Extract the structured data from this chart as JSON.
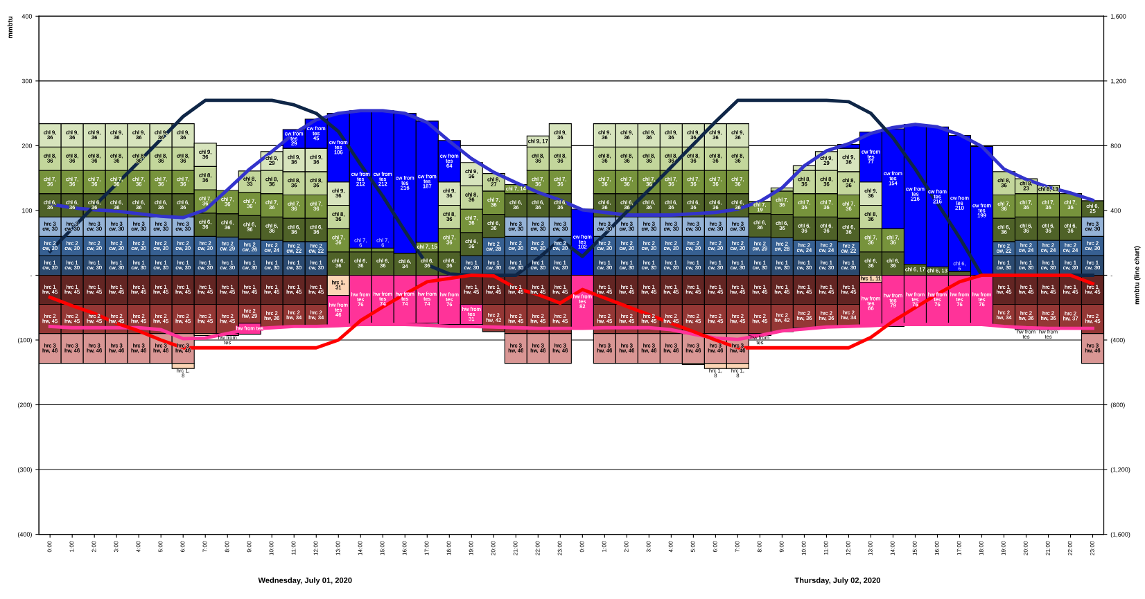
{
  "chart_data": {
    "type": "bar",
    "stacked": true,
    "ylabel": "mmbtu",
    "y2label": "mmbtu (line chart)",
    "categories": [
      "0:00",
      "1:00",
      "2:00",
      "3:00",
      "4:00",
      "5:00",
      "6:00",
      "7:00",
      "8:00",
      "9:00",
      "10:00",
      "11:00",
      "12:00",
      "13:00",
      "14:00",
      "15:00",
      "16:00",
      "17:00",
      "18:00",
      "19:00",
      "20:00",
      "21:00",
      "22:00",
      "23:00",
      "0:00",
      "1:00",
      "2:00",
      "3:00",
      "4:00",
      "5:00",
      "6:00",
      "7:00",
      "8:00",
      "9:00",
      "10:00",
      "11:00",
      "12:00",
      "13:00",
      "14:00",
      "15:00",
      "16:00",
      "17:00",
      "18:00",
      "19:00",
      "20:00",
      "21:00",
      "22:00",
      "23:00"
    ],
    "annotations": [
      "Wednesday, July 01, 2020",
      "Thursday, July 02, 2020"
    ],
    "ylim": [
      -400,
      400
    ],
    "yticks": [
      {
        "value": -400,
        "label": "(400)"
      },
      {
        "value": -300,
        "label": "(300)"
      },
      {
        "value": -200,
        "label": "(200)"
      },
      {
        "value": -100,
        "label": "(100)"
      },
      {
        "value": 0,
        "label": "-"
      },
      100,
      200,
      300,
      400
    ],
    "y2lim": [
      -1600,
      1600
    ],
    "y2ticks": [
      {
        "value": -1600,
        "label": "(1,600)"
      },
      {
        "value": -1200,
        "label": "(1,200)"
      },
      {
        "value": -800,
        "label": "(800)"
      },
      {
        "value": -400,
        "label": "(400)"
      },
      {
        "value": 0,
        "label": "-"
      },
      400,
      800,
      {
        "value": 1200,
        "label": "1,200"
      },
      {
        "value": 1600,
        "label": "1,600"
      }
    ],
    "grid": "y",
    "series": [
      {
        "color": "#2b4a70",
        "values": [
          30,
          30,
          30,
          30,
          30,
          30,
          30,
          30,
          30,
          30,
          30,
          30,
          30,
          null,
          null,
          null,
          null,
          null,
          null,
          30,
          30,
          30,
          30,
          30,
          null,
          30,
          30,
          30,
          30,
          30,
          30,
          30,
          30,
          30,
          30,
          30,
          30,
          null,
          null,
          null,
          null,
          null,
          null,
          30,
          30,
          30,
          30,
          30
        ],
        "value_labels": [
          "hrc 1 cw, 30",
          "hrc 1 cw, 30",
          "hrc 1 cw, 30",
          "hrc 1 cw, 30",
          "hrc 1 cw, 30",
          "hrc 1 cw, 30",
          "hrc 1 cw, 30",
          "hrc 1 cw, 30",
          "hrc 1 cw, 30",
          "hrc 1 cw, 30",
          "hrc 1 cw, 30",
          "hrc 1 cw, 30",
          "hrc 1 cw, 30",
          null,
          null,
          null,
          null,
          null,
          null,
          "hrc 1 cw, 30",
          "hrc 1 cw, 30",
          "hrc 1 cw, 30",
          "hrc 1 cw, 30",
          "hrc 1 cw, 30",
          null,
          "hrc 1 cw, 30",
          "hrc 1 cw, 30",
          "hrc 1 cw, 30",
          "hrc 1 cw, 30",
          "hrc 1 cw, 30",
          "hrc 1 cw, 30",
          "hrc 1 cw, 30",
          "hrc 1 cw, 30",
          "hrc 1 cw, 30",
          "hrc 1 cw, 30",
          "hrc 1 cw, 30",
          "hrc 1 cw, 30",
          null,
          null,
          null,
          null,
          null,
          null,
          "hrc 1 cw, 30",
          "hrc 1 cw, 30",
          "hrc 1 cw, 30",
          "hrc 1 cw, 30",
          "hrc 1 cw, 30"
        ]
      },
      {
        "color": "#376092",
        "values": [
          30,
          30,
          30,
          30,
          30,
          30,
          30,
          30,
          29,
          26,
          24,
          22,
          22,
          null,
          null,
          null,
          null,
          null,
          null,
          null,
          28,
          30,
          30,
          30,
          null,
          30,
          30,
          30,
          30,
          30,
          30,
          30,
          29,
          28,
          24,
          24,
          22,
          null,
          null,
          null,
          null,
          null,
          null,
          22,
          24,
          24,
          24,
          30
        ],
        "value_labels": [
          "hrc 2 cw, 30",
          "hrc 2 cw, 30",
          "hrc 2 cw, 30",
          "hrc 2 cw, 30",
          "hrc 2 cw, 30",
          "hrc 2 cw, 30",
          "hrc 2 cw, 30",
          "hrc 2 cw, 30",
          "hrc 2 cw, 29",
          "hrc 2 cw, 26",
          "hrc 2 cw, 24",
          "hrc 2 cw, 22",
          "hrc 2 cw, 22",
          null,
          null,
          null,
          null,
          null,
          null,
          null,
          "hrc 2 cw, 28",
          "hrc 2 cw, 30",
          "hrc 2 cw, 30",
          "hrc 2 cw, 30",
          null,
          "hrc 2 cw, 30",
          "hrc 2 cw, 30",
          "hrc 2 cw, 30",
          "hrc 2 cw, 30",
          "hrc 2 cw, 30",
          "hrc 2 cw, 30",
          "hrc 2 cw, 30",
          "hrc 2 cw, 29",
          "hrc 2 cw, 28",
          "hrc 2 cw, 24",
          "hrc 2 cw, 24",
          "hrc 2 cw, 22",
          null,
          null,
          null,
          null,
          null,
          null,
          "hrc 2 cw, 22",
          "hrc 2 cw, 24",
          "hrc 2 cw, 24",
          "hrc 2 cw, 24",
          "hrc 2 cw, 30"
        ]
      },
      {
        "color": "#95b3d7",
        "values": [
          30,
          30,
          30,
          30,
          30,
          30,
          30,
          null,
          null,
          null,
          null,
          null,
          null,
          null,
          null,
          null,
          null,
          null,
          null,
          null,
          null,
          30,
          30,
          30,
          null,
          30,
          30,
          30,
          30,
          30,
          30,
          30,
          null,
          null,
          null,
          null,
          null,
          null,
          null,
          null,
          null,
          null,
          null,
          null,
          null,
          null,
          null,
          30
        ],
        "value_labels": [
          "hrc 3 cw, 30",
          "hrc 3 cw, 30",
          "hrc 3 cw, 30",
          "hrc 3 cw, 30",
          "hrc 3 cw, 30",
          "hrc 3 cw, 30",
          "hrc 3 cw, 30",
          null,
          null,
          null,
          null,
          null,
          null,
          null,
          null,
          null,
          null,
          null,
          null,
          null,
          null,
          "hrc 3 cw, 30",
          "hrc 3 cw, 30",
          "hrc 3 cw, 30",
          null,
          "hrc 3 cw, 30",
          "hrc 3 cw, 30",
          "hrc 3 cw, 30",
          "hrc 3 cw, 30",
          "hrc 3 cw, 30",
          "hrc 3 cw, 30",
          "hrc 3 cw, 30",
          null,
          null,
          null,
          null,
          null,
          null,
          null,
          null,
          null,
          null,
          null,
          null,
          null,
          null,
          null,
          "hrc 3 cw, 30"
        ]
      },
      {
        "color": "#4f6228",
        "values": [
          36,
          36,
          36,
          36,
          36,
          36,
          36,
          36,
          36,
          36,
          36,
          36,
          36,
          36,
          36,
          36,
          34,
          36,
          36,
          36,
          36,
          36,
          36,
          36,
          null,
          36,
          36,
          36,
          36,
          36,
          36,
          36,
          36,
          36,
          36,
          36,
          36,
          36,
          36,
          17,
          13,
          6,
          null,
          36,
          36,
          36,
          36,
          25
        ],
        "value_labels": [
          "chl 6, 36",
          "chl 6, 36",
          "chl 6, 36",
          "chl 6, 36",
          "chl 6, 36",
          "chl 6, 36",
          "chl 6, 36",
          "chl 6, 36",
          "chl 6, 36",
          "chl 6, 36",
          "chl 6, 36",
          "chl 6, 36",
          "chl 6, 36",
          "chl 6, 36",
          "chl 6, 36",
          "chl 6, 36",
          "chl 6, 34",
          "chl 6, 36",
          "chl 6, 36",
          "chl 6, 36",
          "chl 6, 36",
          "chl 6, 36",
          "chl 6, 36",
          "chl 6, 36",
          null,
          "chl 6, 36",
          "chl 6, 36",
          "chl 6, 36",
          "chl 6, 36",
          "chl 6, 36",
          "chl 6, 36",
          "chl 6, 36",
          "chl 6, 36",
          "chl 6, 36",
          "chl 6, 36",
          "chl 6, 36",
          "chl 6, 36",
          "chl 6, 36",
          "chl 6, 36",
          "chl 6, 17",
          "chl 6, 13",
          "chl 6, 6",
          null,
          "chl 6, 36",
          "chl 6, 36",
          "chl 6, 36",
          "chl 6, 36",
          "chl 6, 25"
        ]
      },
      {
        "color": "#77933c",
        "values": [
          36,
          36,
          36,
          36,
          36,
          36,
          36,
          36,
          36,
          36,
          36,
          36,
          36,
          36,
          6,
          6,
          null,
          15,
          36,
          36,
          36,
          14,
          36,
          36,
          null,
          36,
          36,
          36,
          36,
          36,
          36,
          36,
          19,
          36,
          36,
          36,
          36,
          36,
          36,
          null,
          null,
          null,
          null,
          36,
          36,
          36,
          36,
          null
        ],
        "value_labels": [
          "chl 7, 36",
          "chl 7, 36",
          "chl 7, 36",
          "chl 7, 36",
          "chl 7, 36",
          "chl 7, 36",
          "chl 7, 36",
          "chl 7, 36",
          "chl 7, 36",
          "chl 7, 36",
          "chl 7, 36",
          "chl 7, 36",
          "chl 7, 36",
          "chl 7, 36",
          "chl 7, 6",
          "chl 7, 6",
          null,
          "chl 7, 15",
          "chl 7, 36",
          "chl 7, 36",
          "chl 7, 36",
          "chl 7, 14",
          "chl 7, 36",
          "chl 7, 36",
          null,
          "chl 7, 36",
          "chl 7, 36",
          "chl 7, 36",
          "chl 7, 36",
          "chl 7, 36",
          "chl 7, 36",
          "chl 7, 36",
          "chl 7, 19",
          "chl 7, 36",
          "chl 7, 36",
          "chl 7, 36",
          "chl 7, 36",
          "chl 7, 36",
          "chl 7, 36",
          null,
          null,
          null,
          null,
          "chl 7, 36",
          "chl 7, 36",
          "chl 7, 36",
          "chl 7, 36",
          null
        ]
      },
      {
        "color": "#c3d69b",
        "values": [
          36,
          36,
          36,
          36,
          36,
          36,
          36,
          36,
          null,
          33,
          36,
          36,
          36,
          36,
          null,
          null,
          null,
          null,
          36,
          36,
          27,
          null,
          36,
          36,
          null,
          36,
          36,
          36,
          36,
          36,
          36,
          36,
          null,
          5,
          36,
          36,
          36,
          36,
          null,
          null,
          null,
          null,
          null,
          36,
          23,
          13,
          null,
          null
        ],
        "value_labels": [
          "chl 8, 36",
          "chl 8, 36",
          "chl 8, 36",
          "chl 8, 36",
          "chl 8, 36",
          "chl 8, 36",
          "chl 8, 36",
          "chl 8, 36",
          null,
          "chl 8, 33",
          "chl 8, 36",
          "chl 8, 36",
          "chl 8, 36",
          "chl 8, 36",
          null,
          null,
          null,
          null,
          "chl 8, 36",
          "chl 8, 36",
          "chl 8, 27",
          null,
          "chl 8, 36",
          "chl 8, 36",
          null,
          "chl 8, 36",
          "chl 8, 36",
          "chl 8, 36",
          "chl 8, 36",
          "chl 8, 36",
          "chl 8, 36",
          "chl 8, 36",
          null,
          null,
          "chl 8, 36",
          "chl 8, 36",
          "chl 8, 36",
          "chl 8, 36",
          null,
          null,
          null,
          null,
          null,
          "chl 8, 36",
          "chl 8, 23",
          "chl 8, 13",
          null,
          null
        ]
      },
      {
        "color": "#d7e4bd",
        "values": [
          36,
          36,
          36,
          36,
          36,
          36,
          36,
          36,
          null,
          null,
          29,
          36,
          36,
          36,
          null,
          null,
          null,
          null,
          36,
          36,
          null,
          null,
          17,
          36,
          null,
          36,
          36,
          36,
          36,
          36,
          36,
          36,
          null,
          null,
          7,
          29,
          36,
          36,
          null,
          null,
          null,
          null,
          null,
          null,
          null,
          null,
          null,
          null
        ],
        "value_labels": [
          "chl 9, 36",
          "chl 9, 36",
          "chl 9, 36",
          "chl 9, 36",
          "chl 9, 36",
          "chl 9, 36",
          "chl 9, 36",
          "chl 9, 36",
          null,
          null,
          "chl 9, 29",
          "chl 9, 36",
          "chl 9, 36",
          "chl 9, 36",
          null,
          null,
          null,
          null,
          "chl 9, 36",
          "chl 9, 36",
          null,
          null,
          "chl 9, 17",
          "chl 9, 36",
          null,
          "chl 9, 36",
          "chl 9, 36",
          "chl 9, 36",
          "chl 9, 36",
          "chl 9, 36",
          "chl 9, 36",
          "chl 9, 36",
          null,
          null,
          null,
          "chl 9, 29",
          "chl 9, 36",
          "chl 9, 36",
          null,
          null,
          null,
          null,
          null,
          null,
          null,
          null,
          null,
          null
        ]
      },
      {
        "color": "#0000ff",
        "values": [
          null,
          null,
          null,
          null,
          null,
          null,
          null,
          null,
          null,
          null,
          null,
          29,
          45,
          106,
          212,
          212,
          216,
          187,
          64,
          null,
          null,
          null,
          null,
          null,
          102,
          null,
          null,
          null,
          null,
          null,
          null,
          null,
          null,
          null,
          null,
          null,
          6,
          77,
          154,
          216,
          216,
          210,
          199,
          null,
          null,
          null,
          null,
          null
        ],
        "value_labels": [
          null,
          null,
          null,
          null,
          null,
          null,
          null,
          null,
          null,
          null,
          null,
          "cw from tes\n29",
          "cw from tes\n45",
          "cw from tes\n106",
          "cw from tes\n212",
          "cw from tes\n212",
          "cw from tes\n216",
          "cw from tes\n187",
          "cw from tes\n64",
          null,
          null,
          null,
          null,
          null,
          "cw from tes\n102",
          null,
          null,
          null,
          null,
          null,
          null,
          null,
          null,
          null,
          null,
          null,
          null,
          "cw from tes\n77",
          "cw from tes\n154",
          "cw from tes\n216",
          "cw from tes\n216",
          "cw from tes\n210",
          "cw from tes\n199",
          null,
          null,
          null,
          null,
          null
        ]
      },
      {
        "color": "#632523",
        "values": [
          -45,
          -45,
          -45,
          -45,
          -45,
          -45,
          -45,
          -45,
          -45,
          -45,
          -45,
          -45,
          -45,
          null,
          null,
          null,
          null,
          null,
          null,
          -45,
          -45,
          -45,
          -45,
          -45,
          null,
          -45,
          -45,
          -45,
          -45,
          -45,
          -45,
          -45,
          -45,
          -45,
          -45,
          -45,
          -45,
          null,
          null,
          null,
          null,
          null,
          null,
          -45,
          -45,
          -45,
          -45,
          -45
        ],
        "value_labels": [
          "hrc 1 hw, 45",
          "hrc 1 hw, 45",
          "hrc 1 hw, 45",
          "hrc 1 hw, 45",
          "hrc 1 hw, 45",
          "hrc 1 hw, 45",
          "hrc 1 hw, 45",
          "hrc 1 hw, 45",
          "hrc 1 hw, 45",
          "hrc 1 hw, 45",
          "hrc 1 hw, 45",
          "hrc 1 hw, 45",
          "hrc 1 hw, 45",
          null,
          null,
          null,
          null,
          null,
          null,
          "hrc 1 hw, 45",
          "hrc 1 hw, 45",
          "hrc 1 hw, 45",
          "hrc 1 hw, 45",
          "hrc 1 hw, 45",
          null,
          "hrc 1 hw, 45",
          "hrc 1 hw, 45",
          "hrc 1 hw, 45",
          "hrc 1 hw, 45",
          "hrc 1 hw, 45",
          "hrc 1 hw, 45",
          "hrc 1 hw, 45",
          "hrc 1 hw, 45",
          "hrc 1 hw, 45",
          "hrc 1 hw, 45",
          "hrc 1 hw, 45",
          "hrc 1 hw, 45",
          null,
          null,
          null,
          null,
          null,
          null,
          "hrc 1 hw, 45",
          "hrc 1 hw, 45",
          "hrc 1 hw, 45",
          "hrc 1 hw, 45",
          "hrc 1 hw, 45"
        ]
      },
      {
        "color": "#953735",
        "values": [
          -45,
          -45,
          -45,
          -45,
          -45,
          -45,
          -45,
          -45,
          -45,
          -29,
          -36,
          -34,
          -34,
          null,
          null,
          null,
          null,
          null,
          null,
          null,
          -42,
          -45,
          -45,
          -45,
          null,
          -45,
          -45,
          -45,
          -45,
          -45,
          -45,
          -45,
          -45,
          -42,
          -36,
          -36,
          -34,
          null,
          null,
          null,
          null,
          null,
          null,
          -34,
          -36,
          -36,
          -37,
          -45
        ],
        "value_labels": [
          "hrc 2 hw, 45",
          "hrc 2 hw, 45",
          "hrc 2 hw, 45",
          "hrc 2 hw, 45",
          "hrc 2 hw, 45",
          "hrc 2 hw, 45",
          "hrc 2 hw, 45",
          "hrc 2 hw, 45",
          "hrc 2 hw, 45",
          "hrc 2 hw, 29",
          "hrc 2 hw, 36",
          "hrc 2 hw, 34",
          "hrc 2 hw, 34",
          null,
          null,
          null,
          null,
          null,
          null,
          null,
          "hrc 2 hw, 42",
          "hrc 2 hw, 45",
          "hrc 2 hw, 45",
          "hrc 2 hw, 45",
          null,
          "hrc 2 hw, 45",
          "hrc 2 hw, 45",
          "hrc 2 hw, 45",
          "hrc 2 hw, 45",
          "hrc 2 hw, 45",
          "hrc 2 hw, 45",
          "hrc 2 hw, 45",
          "hrc 2 hw, 45",
          "hrc 2 hw, 42",
          "hrc 2 hw, 36",
          "hrc 2 hw, 36",
          "hrc 2 hw, 34",
          null,
          null,
          null,
          null,
          null,
          null,
          "hrc 2 hw, 34",
          "hrc 2 hw, 36",
          "hrc 2 hw, 36",
          "hrc 2 hw, 37",
          "hrc 2 hw, 45"
        ]
      },
      {
        "color": "#d99694",
        "values": [
          -46,
          -46,
          -46,
          -46,
          -46,
          -46,
          -46,
          null,
          null,
          null,
          null,
          null,
          null,
          null,
          null,
          null,
          null,
          null,
          null,
          null,
          null,
          -46,
          -46,
          -46,
          null,
          -46,
          -46,
          -46,
          -46,
          -46,
          -46,
          -46,
          null,
          null,
          null,
          null,
          null,
          null,
          null,
          null,
          null,
          null,
          null,
          null,
          null,
          null,
          null,
          -46
        ],
        "value_labels": [
          "hrc 3 hw, 46",
          "hrc 3 hw, 46",
          "hrc 3 hw, 46",
          "hrc 3 hw, 46",
          "hrc 3 hw, 46",
          "hrc 3 hw, 46",
          "hrc 3 hw, 46",
          null,
          null,
          null,
          null,
          null,
          null,
          null,
          null,
          null,
          null,
          null,
          null,
          null,
          null,
          "hrc 3 hw, 46",
          "hrc 3 hw, 46",
          "hrc 3 hw, 46",
          null,
          "hrc 3 hw, 46",
          "hrc 3 hw, 46",
          "hrc 3 hw, 46",
          "hrc 3 hw, 46",
          "hrc 3 hw, 46",
          "hrc 3 hw, 46",
          "hrc 3 hw, 46",
          null,
          null,
          null,
          null,
          null,
          null,
          null,
          null,
          null,
          null,
          null,
          null,
          null,
          null,
          null,
          "hrc 3 hw, 46"
        ]
      },
      {
        "color": "#fcd5b5",
        "values": [
          null,
          null,
          null,
          null,
          null,
          null,
          -8,
          -3,
          null,
          null,
          null,
          null,
          null,
          -31,
          null,
          null,
          null,
          null,
          null,
          null,
          null,
          null,
          null,
          null,
          null,
          null,
          null,
          null,
          null,
          -2,
          -8,
          -8,
          null,
          null,
          null,
          null,
          null,
          -11,
          null,
          null,
          null,
          null,
          null,
          null,
          null,
          null,
          null,
          null
        ],
        "value_labels": [
          null,
          null,
          null,
          null,
          null,
          null,
          "hrc 1, 8",
          null,
          null,
          null,
          null,
          null,
          null,
          "hrc 1, 31",
          null,
          null,
          null,
          null,
          null,
          null,
          null,
          null,
          null,
          null,
          null,
          null,
          null,
          null,
          null,
          null,
          "hrc 1, 8",
          "hrc 1, 8",
          null,
          null,
          null,
          null,
          null,
          "hrc 1, 11",
          null,
          null,
          null,
          null,
          null,
          null,
          null,
          null,
          null,
          null
        ]
      },
      {
        "color": "#ff3399",
        "values": [
          null,
          null,
          null,
          null,
          null,
          null,
          null,
          null,
          -3,
          -17,
          null,
          null,
          null,
          -46,
          -76,
          -74,
          -74,
          -74,
          -76,
          -31,
          null,
          null,
          null,
          null,
          -82,
          null,
          null,
          null,
          null,
          null,
          null,
          null,
          -3,
          null,
          null,
          null,
          null,
          -66,
          -79,
          -76,
          -76,
          -76,
          -76,
          null,
          -3,
          -3,
          null,
          null
        ],
        "value_labels": [
          null,
          null,
          null,
          null,
          null,
          null,
          null,
          null,
          "hw from tes",
          "hw from tes",
          null,
          null,
          null,
          "hw from tes\n46",
          "hw from tes\n76",
          "hw from tes\n74",
          "hw from tes\n74",
          "hw from tes\n74",
          "hw from tes\n76",
          "hw from tes\n31",
          null,
          null,
          null,
          null,
          "hw from tes\n82",
          null,
          null,
          null,
          null,
          null,
          null,
          null,
          "hw from tes",
          null,
          null,
          null,
          null,
          "hw from tes\n66",
          "hw from tes\n79",
          "hw from tes\n76",
          "hw from tes\n76",
          "hw from tes\n76",
          "hw from tes\n76",
          null,
          "hw from tes",
          "hw from tes",
          null,
          null
        ]
      },
      {
        "type": "line",
        "color": "#3333cc",
        "values": [
          110,
          104,
          101,
          99,
          95,
          91,
          89,
          101,
          132,
          164,
          191,
          219,
          240,
          250,
          254,
          254,
          250,
          236,
          207,
          180,
          159,
          143,
          128,
          116,
          101,
          97,
          93,
          93,
          93,
          95,
          97,
          102,
          114,
          135,
          169,
          192,
          203,
          219,
          228,
          233,
          229,
          217,
          199,
          164,
          148,
          136,
          127,
          116
        ]
      },
      {
        "type": "line",
        "color": "#ff3399",
        "values": [
          -79,
          -81,
          -81,
          -81,
          -81,
          -84,
          -98,
          -97,
          -90,
          -83,
          -81,
          -79,
          -79,
          -78,
          -76,
          -76,
          -76,
          -77,
          -79,
          -79,
          -80,
          -81,
          -82,
          -82,
          -82,
          -81,
          -81,
          -81,
          -84,
          -91,
          -97,
          -99,
          -93,
          -86,
          -83,
          -80,
          -79,
          -78,
          -76,
          -76,
          -76,
          -76,
          -76,
          -79,
          -81,
          -82,
          -82,
          -82
        ]
      },
      {
        "type": "line",
        "axis": "y2",
        "color": "#0f2647",
        "values": [
          148,
          288,
          428,
          564,
          700,
          840,
          980,
          1080,
          1080,
          1080,
          1080,
          1052,
          1000,
          888,
          684,
          488,
          272,
          64,
          8,
          0,
          0,
          0,
          104,
          220,
          116,
          252,
          392,
          528,
          668,
          808,
          948,
          1080,
          1080,
          1080,
          1080,
          1080,
          1072,
          1000,
          848,
          656,
          444,
          232,
          0,
          0,
          0,
          0,
          0,
          0
        ]
      },
      {
        "type": "line",
        "axis": "y2",
        "color": "#ff0000",
        "values": [
          -136,
          -188,
          -236,
          -296,
          -344,
          -400,
          -448,
          -448,
          -448,
          -448,
          -448,
          -448,
          -448,
          -400,
          -280,
          -196,
          -116,
          -40,
          -20,
          0,
          -4,
          -80,
          -120,
          -172,
          -88,
          -140,
          -192,
          -244,
          -296,
          -348,
          -400,
          -448,
          -448,
          -448,
          -448,
          -448,
          -448,
          -384,
          -284,
          -200,
          -116,
          -40,
          0,
          0,
          0,
          0,
          0,
          -52
        ]
      }
    ]
  }
}
